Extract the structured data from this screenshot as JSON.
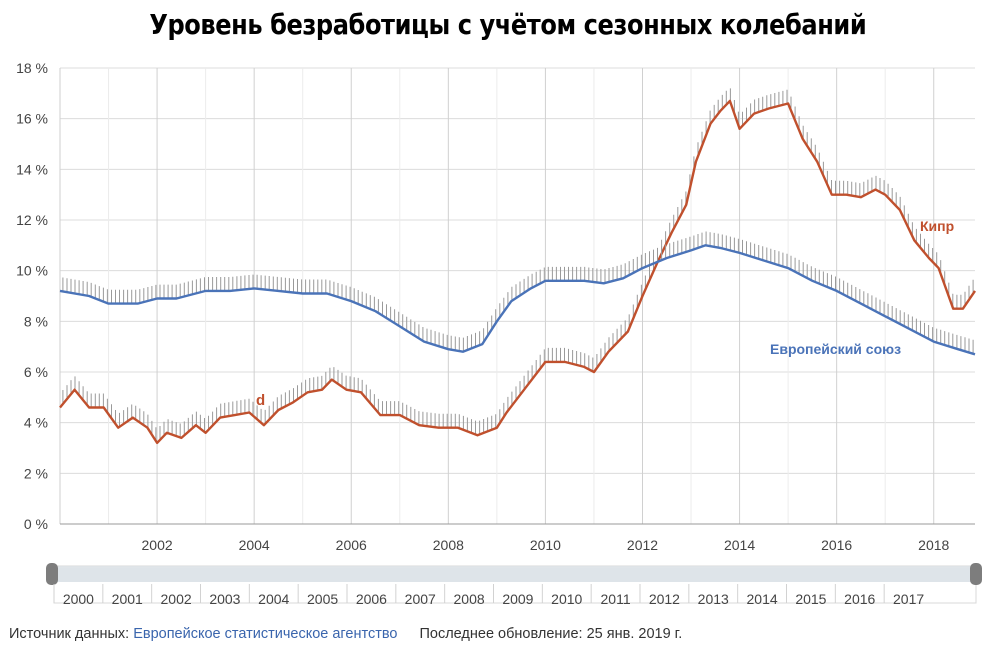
{
  "title": "Уровень безработицы с учётом сезонных колебаний",
  "footer": {
    "source_label": "Источник данных:",
    "source_link": "Европейское статистическое агентство",
    "updated_label": "Последнее обновление: 25 янв. 2019 г."
  },
  "chart_data": {
    "type": "line",
    "title": "Уровень безработицы с учётом сезонных колебаний",
    "x_unit": "year",
    "xlim": [
      2000.0,
      2018.85
    ],
    "ylim": [
      0,
      18
    ],
    "y_ticks": [
      "0 %",
      "2 %",
      "4 %",
      "6 %",
      "8 %",
      "10 %",
      "12 %",
      "14 %",
      "16 %",
      "18 %"
    ],
    "x_ticks": [
      "2002",
      "2004",
      "2006",
      "2008",
      "2010",
      "2012",
      "2014",
      "2016",
      "2018"
    ],
    "grid": true,
    "annotation": "d",
    "series": [
      {
        "name": "Кипр",
        "color": "#c0502d",
        "x": [
          2000.0,
          2000.3,
          2000.6,
          2000.9,
          2001.2,
          2001.5,
          2001.8,
          2002.0,
          2002.2,
          2002.5,
          2002.8,
          2003.0,
          2003.3,
          2003.6,
          2003.9,
          2004.2,
          2004.5,
          2004.8,
          2005.1,
          2005.4,
          2005.6,
          2005.9,
          2006.2,
          2006.6,
          2007.0,
          2007.4,
          2007.8,
          2008.2,
          2008.6,
          2009.0,
          2009.2,
          2009.6,
          2010.0,
          2010.4,
          2010.8,
          2011.0,
          2011.3,
          2011.7,
          2012.0,
          2012.3,
          2012.6,
          2012.9,
          2013.1,
          2013.4,
          2013.6,
          2013.8,
          2014.0,
          2014.3,
          2014.6,
          2014.8,
          2015.0,
          2015.3,
          2015.6,
          2015.9,
          2016.2,
          2016.5,
          2016.8,
          2017.0,
          2017.3,
          2017.6,
          2017.9,
          2018.1,
          2018.4,
          2018.6,
          2018.85
        ],
        "values": [
          4.6,
          5.3,
          4.6,
          4.6,
          3.8,
          4.2,
          3.8,
          3.2,
          3.6,
          3.4,
          3.9,
          3.6,
          4.2,
          4.3,
          4.4,
          3.9,
          4.5,
          4.8,
          5.2,
          5.3,
          5.7,
          5.3,
          5.2,
          4.3,
          4.3,
          3.9,
          3.8,
          3.8,
          3.5,
          3.8,
          4.4,
          5.4,
          6.4,
          6.4,
          6.2,
          6.0,
          6.8,
          7.6,
          9.0,
          10.3,
          11.5,
          12.6,
          14.3,
          15.8,
          16.3,
          16.7,
          15.6,
          16.2,
          16.4,
          16.5,
          16.6,
          15.2,
          14.3,
          13.0,
          13.0,
          12.9,
          13.2,
          13.0,
          12.4,
          11.2,
          10.5,
          10.1,
          8.5,
          8.5,
          9.2
        ]
      },
      {
        "name": "Европейский союз",
        "color": "#4a73b8",
        "x": [
          2000.0,
          2000.6,
          2001.0,
          2001.6,
          2002.0,
          2002.4,
          2003.0,
          2003.5,
          2004.0,
          2004.5,
          2005.0,
          2005.5,
          2006.0,
          2006.5,
          2007.0,
          2007.5,
          2008.0,
          2008.3,
          2008.7,
          2009.0,
          2009.3,
          2009.7,
          2010.0,
          2010.4,
          2010.8,
          2011.2,
          2011.6,
          2012.0,
          2012.5,
          2013.0,
          2013.3,
          2013.6,
          2014.0,
          2014.5,
          2015.0,
          2015.5,
          2016.0,
          2016.5,
          2017.0,
          2017.5,
          2018.0,
          2018.5,
          2018.85
        ],
        "values": [
          9.2,
          9.0,
          8.7,
          8.7,
          8.9,
          8.9,
          9.2,
          9.2,
          9.3,
          9.2,
          9.1,
          9.1,
          8.8,
          8.4,
          7.8,
          7.2,
          6.9,
          6.8,
          7.1,
          8.0,
          8.8,
          9.3,
          9.6,
          9.6,
          9.6,
          9.5,
          9.7,
          10.1,
          10.5,
          10.8,
          11.0,
          10.9,
          10.7,
          10.4,
          10.1,
          9.6,
          9.2,
          8.7,
          8.2,
          7.7,
          7.2,
          6.9,
          6.7
        ]
      }
    ],
    "navigator": {
      "labels": [
        "2000",
        "2001",
        "2002",
        "2003",
        "2004",
        "2005",
        "2006",
        "2007",
        "2008",
        "2009",
        "2010",
        "2011",
        "2012",
        "2013",
        "2014",
        "2015",
        "2016",
        "2017"
      ]
    }
  }
}
